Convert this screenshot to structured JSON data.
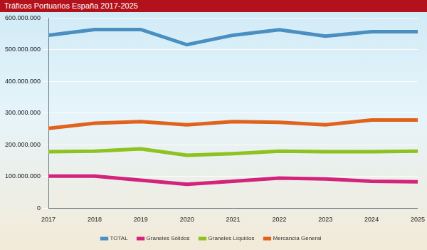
{
  "chart_data": {
    "type": "line",
    "title": "Tráficos Portuarios España 2017-2025",
    "categories": [
      "2017",
      "2018",
      "2019",
      "2020",
      "2021",
      "2022",
      "2023",
      "2024",
      "2025"
    ],
    "series": [
      {
        "name": "TOTAL",
        "color": "#4a8fc2",
        "values": [
          546000000,
          564000000,
          564000000,
          516000000,
          546000000,
          563000000,
          543000000,
          557000000,
          557000000
        ]
      },
      {
        "name": "Graneles Sólidos",
        "color": "#d3237c",
        "values": [
          101000000,
          101000000,
          88000000,
          75000000,
          85000000,
          95000000,
          92000000,
          85000000,
          83000000
        ]
      },
      {
        "name": "Graneles Líquidos",
        "color": "#8dc21f",
        "values": [
          178000000,
          180000000,
          187000000,
          167000000,
          172000000,
          180000000,
          178000000,
          178000000,
          180000000
        ]
      },
      {
        "name": "Mercancía General",
        "color": "#e0621b",
        "values": [
          252000000,
          268000000,
          273000000,
          263000000,
          273000000,
          271000000,
          263000000,
          278000000,
          278000000
        ]
      }
    ],
    "ylim": [
      0,
      600000000
    ],
    "yticks": [
      0,
      {
        "value": 100000000,
        "label": "100.000.000"
      },
      {
        "value": 200000000,
        "label": "200.000.000"
      },
      {
        "value": 300000000,
        "label": "300.000.000"
      },
      {
        "value": 400000000,
        "label": "400.000.000"
      },
      {
        "value": 500000000,
        "label": "500.000.000"
      },
      {
        "value": 600000000,
        "label": "600.000.000"
      }
    ],
    "grid": true,
    "legend": "bottom"
  }
}
